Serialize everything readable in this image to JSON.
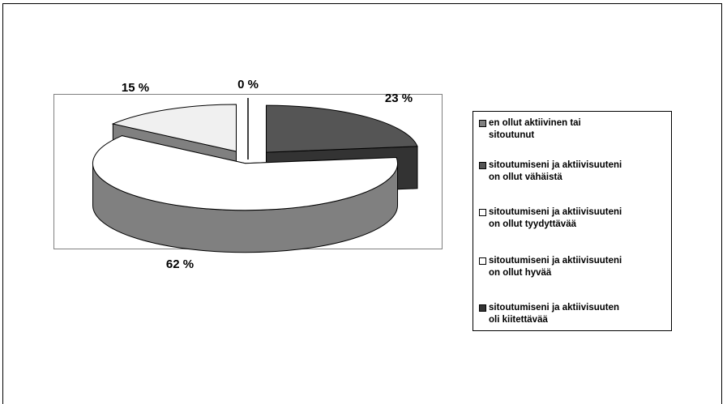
{
  "chart_data": {
    "type": "pie",
    "style": "3d-exploded",
    "labels": [
      "en ollut aktiivinen tai sitoutunut",
      "sitoutumiseni ja aktiivisuuteni on ollut vähäistä",
      "sitoutumiseni ja aktiivisuuteni on ollut tyydyttävää",
      "sitoutumiseni ja aktiivisuuteni on ollut hyvää",
      "sitoutumiseni ja aktiivisuuten oli kiitettävää"
    ],
    "values": [
      0,
      23,
      62,
      15,
      0
    ],
    "value_labels": [
      "",
      "23 %",
      "62 %",
      "15 %",
      "0 %"
    ],
    "colors": [
      "#808080",
      "#555555",
      "#ffffff",
      "#f0f0f0",
      "#333333"
    ],
    "legend_position": "right"
  },
  "legend": {
    "items": [
      {
        "line1": "en ollut aktiivinen tai",
        "line2": "sitoutunut",
        "color": "#808080"
      },
      {
        "line1": "sitoutumiseni ja aktiivisuuteni",
        "line2": "on ollut vähäistä",
        "color": "#555555"
      },
      {
        "line1": "sitoutumiseni ja aktiivisuuteni",
        "line2": "on ollut tyydyttävää",
        "color": "#ffffff"
      },
      {
        "line1": "sitoutumiseni ja aktiivisuuteni",
        "line2": "on ollut hyvää",
        "color": "#ffffff"
      },
      {
        "line1": "sitoutumiseni ja aktiivisuuten",
        "line2": "oli kiitettävää",
        "color": "#333333"
      }
    ]
  }
}
